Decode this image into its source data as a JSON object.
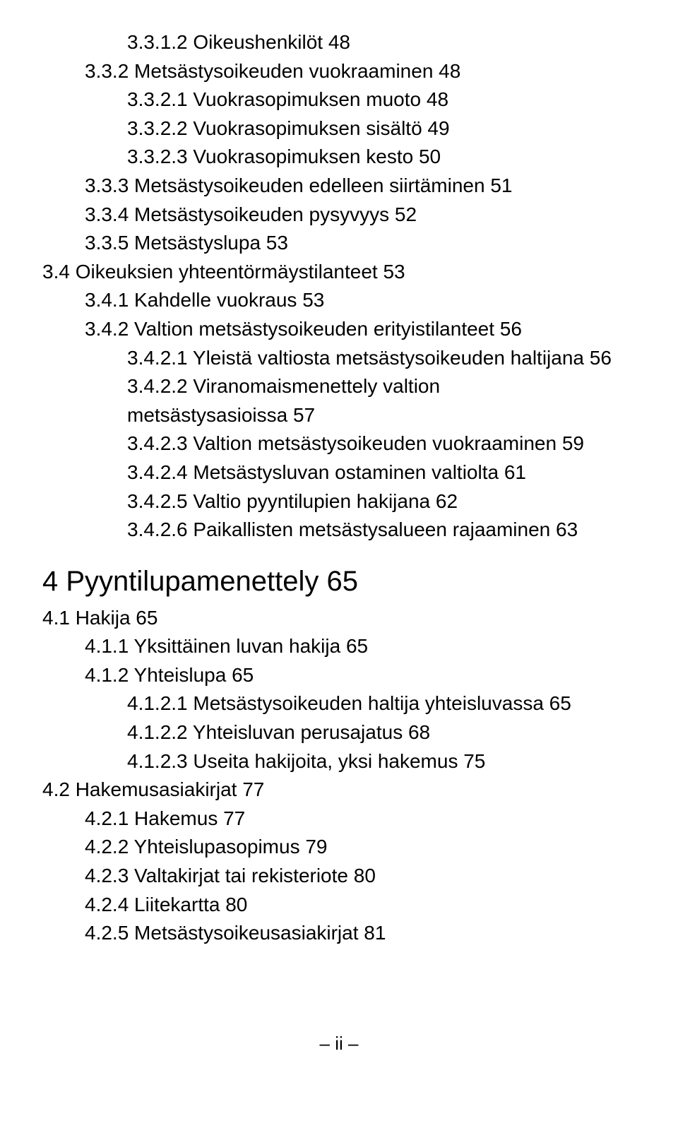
{
  "toc": {
    "block1": [
      {
        "indent": 2,
        "text": "3.3.1.2 Oikeushenkilöt  48"
      },
      {
        "indent": 1,
        "text": "3.3.2 Metsästysoikeuden vuokraaminen  48"
      },
      {
        "indent": 2,
        "text": "3.3.2.1 Vuokrasopimuksen muoto  48"
      },
      {
        "indent": 2,
        "text": "3.3.2.2 Vuokrasopimuksen sisältö  49"
      },
      {
        "indent": 2,
        "text": "3.3.2.3 Vuokrasopimuksen kesto  50"
      },
      {
        "indent": 1,
        "text": "3.3.3 Metsästysoikeuden edelleen siirtäminen  51"
      },
      {
        "indent": 1,
        "text": "3.3.4 Metsästysoikeuden pysyvyys  52"
      },
      {
        "indent": 1,
        "text": "3.3.5 Metsästyslupa  53"
      },
      {
        "indent": 0,
        "text": "3.4 Oikeuksien yhteentörmäystilanteet 53"
      },
      {
        "indent": 1,
        "text": "3.4.1 Kahdelle vuokraus 53"
      },
      {
        "indent": 1,
        "text": "3.4.2 Valtion metsästysoikeuden erityistilanteet 56"
      },
      {
        "indent": 2,
        "text": "3.4.2.1 Yleistä valtiosta metsästysoikeuden haltijana 56"
      },
      {
        "indent": 2,
        "text": "3.4.2.2 Viranomaismenettely valtion"
      },
      {
        "indent": 2,
        "text": "metsästysasioissa 57"
      },
      {
        "indent": 2,
        "text": "3.4.2.3 Valtion metsästysoikeuden vuokraaminen  59"
      },
      {
        "indent": 2,
        "text": "3.4.2.4 Metsästysluvan ostaminen valtiolta  61"
      },
      {
        "indent": 2,
        "text": "3.4.2.5 Valtio pyyntilupien hakijana  62"
      },
      {
        "indent": 2,
        "text": "3.4.2.6  Paikallisten metsästysalueen rajaaminen 63"
      }
    ],
    "chapter": "4 Pyyntilupamenettely 65",
    "block2": [
      {
        "indent": 0,
        "text": "4.1 Hakija  65"
      },
      {
        "indent": 1,
        "text": "4.1.1 Yksittäinen luvan hakija  65"
      },
      {
        "indent": 1,
        "text": "4.1.2 Yhteislupa  65"
      },
      {
        "indent": 2,
        "text": "4.1.2.1 Metsästysoikeuden haltija yhteisluvassa  65"
      },
      {
        "indent": 2,
        "text": "4.1.2.2 Yhteisluvan perusajatus  68"
      },
      {
        "indent": 2,
        "text": "4.1.2.3 Useita hakijoita, yksi hakemus  75"
      },
      {
        "indent": 0,
        "text": "4.2 Hakemusasiakirjat  77"
      },
      {
        "indent": 1,
        "text": "4.2.1 Hakemus  77"
      },
      {
        "indent": 1,
        "text": "4.2.2 Yhteislupasopimus  79"
      },
      {
        "indent": 1,
        "text": "4.2.3 Valtakirjat tai rekisteriote  80"
      },
      {
        "indent": 1,
        "text": "4.2.4 Liitekartta  80"
      },
      {
        "indent": 1,
        "text": "4.2.5 Metsästysoikeusasiakirjat  81"
      }
    ]
  },
  "footer": "–  ii  –"
}
